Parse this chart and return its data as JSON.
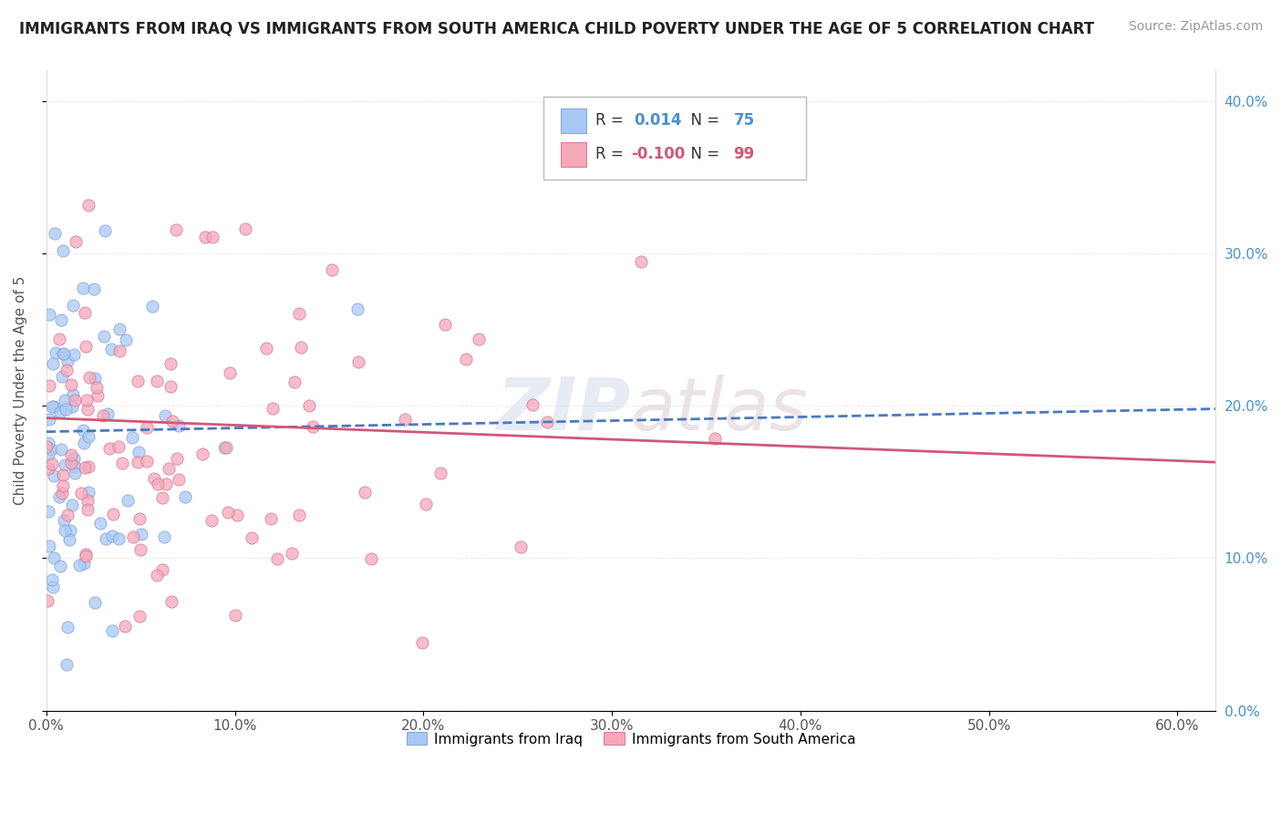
{
  "title": "IMMIGRANTS FROM IRAQ VS IMMIGRANTS FROM SOUTH AMERICA CHILD POVERTY UNDER THE AGE OF 5 CORRELATION CHART",
  "source": "Source: ZipAtlas.com",
  "ylabel": "Child Poverty Under the Age of 5",
  "xlim": [
    0.0,
    0.62
  ],
  "ylim": [
    0.0,
    0.42
  ],
  "iraq_color": "#a8c8f5",
  "south_america_color": "#f5a8b8",
  "iraq_edge_color": "#88aad8",
  "south_america_edge_color": "#d880a0",
  "iraq_R": 0.014,
  "iraq_N": 75,
  "south_america_R": -0.1,
  "south_america_N": 99,
  "iraq_line_color": "#4a7abf",
  "south_america_line_color": "#d05878",
  "right_tick_color": "#4a90d0",
  "legend_iraq_label": "Immigrants from Iraq",
  "legend_sa_label": "Immigrants from South America",
  "title_fontsize": 12,
  "source_fontsize": 10,
  "tick_fontsize": 11,
  "ylabel_fontsize": 11
}
